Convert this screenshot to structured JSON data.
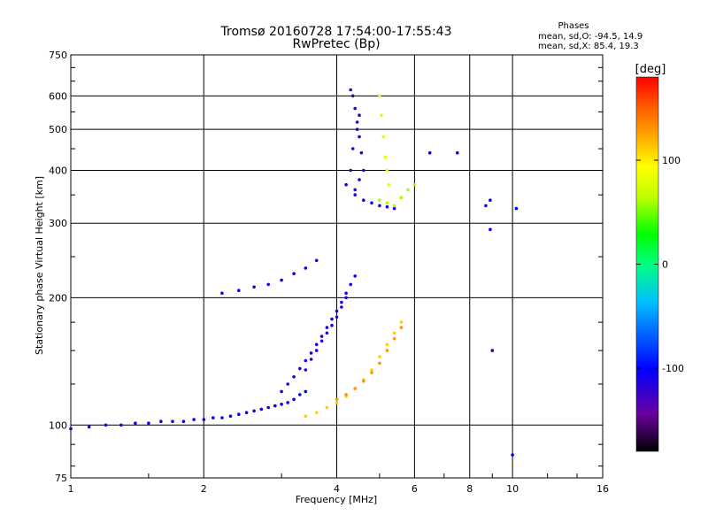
{
  "chart_data": {
    "type": "scatter",
    "title": "Tromsø 20160728 17:54:00-17:55:43",
    "subtitle": "RwPretec (Bp)",
    "xlabel": "Frequency [MHz]",
    "ylabel": "Stationary phase Virtual Height [km]",
    "x_scale": "log",
    "y_scale": "log",
    "xlim": [
      1,
      16
    ],
    "ylim": [
      75,
      750
    ],
    "x_ticks": [
      1,
      2,
      4,
      6,
      8,
      10,
      16
    ],
    "y_ticks": [
      75,
      100,
      200,
      300,
      400,
      500,
      600,
      750
    ],
    "grid": true,
    "stats_header": "Phases",
    "stats": [
      "mean, sd,O: -94.5, 14.9",
      "mean, sd,X:  85.4, 19.3"
    ],
    "colorbar": {
      "label": "[deg]",
      "range": [
        -180,
        180
      ],
      "ticks": [
        100,
        0,
        -100
      ],
      "colors": [
        "#000000",
        "#6a00a0",
        "#0000ff",
        "#00c0ff",
        "#00ff80",
        "#00ff00",
        "#c0ff00",
        "#ffff00",
        "#ffa000",
        "#ff5000",
        "#ff0000"
      ]
    },
    "series": [
      {
        "x": [
          1.0,
          1.1,
          1.2,
          1.3,
          1.4,
          1.5,
          1.6,
          1.7,
          1.8,
          1.9,
          2.0,
          2.1,
          2.2,
          2.3,
          2.4,
          2.5,
          2.6,
          2.7,
          2.8,
          2.9,
          3.0,
          3.1,
          3.2,
          3.3,
          3.4
        ],
        "y": [
          98,
          99,
          100,
          100,
          101,
          101,
          102,
          102,
          102,
          103,
          103,
          104,
          104,
          105,
          106,
          107,
          108,
          109,
          110,
          111,
          112,
          113,
          115,
          118,
          120
        ],
        "phase": -105
      },
      {
        "x": [
          3.0,
          3.1,
          3.2,
          3.3,
          3.4,
          3.5,
          3.6,
          3.7,
          3.8,
          3.9,
          4.0,
          4.1,
          4.2,
          4.3,
          4.4
        ],
        "y": [
          120,
          125,
          130,
          136,
          142,
          148,
          155,
          162,
          170,
          178,
          186,
          195,
          205,
          215,
          225
        ],
        "phase": -110
      },
      {
        "x": [
          3.4,
          3.5,
          3.6,
          3.7,
          3.8,
          3.9,
          4.0,
          4.1,
          4.2
        ],
        "y": [
          135,
          143,
          150,
          158,
          165,
          172,
          180,
          190,
          200
        ],
        "phase": -115
      },
      {
        "x": [
          4.3,
          4.35,
          4.4,
          4.45,
          4.5,
          4.55,
          4.6,
          4.5,
          4.4,
          4.3,
          4.35,
          4.45,
          4.5
        ],
        "y": [
          620,
          600,
          560,
          520,
          480,
          440,
          400,
          380,
          360,
          400,
          450,
          500,
          540
        ],
        "phase": -120
      },
      {
        "x": [
          4.2,
          4.4,
          4.6,
          4.8,
          5.0,
          5.2,
          5.4
        ],
        "y": [
          370,
          350,
          340,
          335,
          330,
          328,
          325
        ],
        "phase": -110
      },
      {
        "x": [
          5.0,
          5.05,
          5.1,
          5.15,
          5.2,
          5.25
        ],
        "y": [
          600,
          540,
          480,
          430,
          400,
          370
        ],
        "phase": 80
      },
      {
        "x": [
          5.0,
          5.2,
          5.4,
          5.6,
          5.8,
          6.0
        ],
        "y": [
          340,
          335,
          330,
          345,
          360,
          370
        ],
        "phase": 60
      },
      {
        "x": [
          3.4,
          3.6,
          3.8,
          4.0,
          4.2,
          4.4,
          4.6,
          4.8,
          5.0,
          5.2,
          5.4,
          5.6
        ],
        "y": [
          105,
          107,
          110,
          113,
          117,
          122,
          128,
          135,
          145,
          155,
          165,
          175
        ],
        "phase": 110
      },
      {
        "x": [
          4.0,
          4.2,
          4.4,
          4.6,
          4.8,
          5.0,
          5.2,
          5.4,
          5.6
        ],
        "y": [
          115,
          118,
          122,
          127,
          133,
          140,
          150,
          160,
          170
        ],
        "phase": 130
      },
      {
        "x": [
          2.2,
          2.4,
          2.6,
          2.8,
          3.0,
          3.2,
          3.4,
          3.6
        ],
        "y": [
          205,
          208,
          212,
          215,
          220,
          228,
          235,
          245
        ],
        "phase": -105
      },
      {
        "x": [
          6.5,
          7.5,
          8.7,
          8.9,
          10.2,
          8.9,
          9.0,
          10.0
        ],
        "y": [
          440,
          440,
          330,
          340,
          325,
          290,
          150,
          85
        ],
        "phase": -100
      }
    ]
  }
}
